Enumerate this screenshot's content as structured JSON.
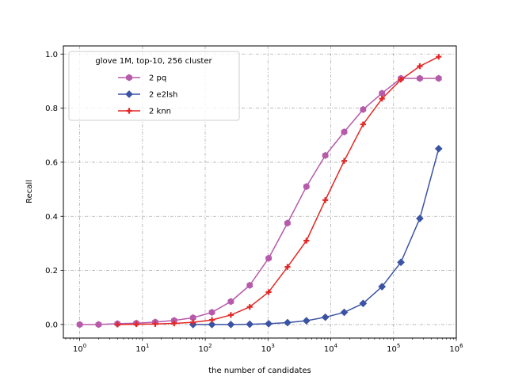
{
  "chart_data": {
    "type": "line",
    "x_scale": "log",
    "xlim": [
      0.55,
      1000000
    ],
    "ylim": [
      -0.05,
      1.03
    ],
    "grid": true,
    "legend_position": "top-left",
    "legend_title": "glove 1M, top-10, 256 cluster",
    "xlabel": "the number of candidates",
    "ylabel": "Recall",
    "x_ticks": [
      {
        "value": 1,
        "base": "10",
        "exp": "0"
      },
      {
        "value": 10,
        "base": "10",
        "exp": "1"
      },
      {
        "value": 100,
        "base": "10",
        "exp": "2"
      },
      {
        "value": 1000,
        "base": "10",
        "exp": "3"
      },
      {
        "value": 10000,
        "base": "10",
        "exp": "4"
      },
      {
        "value": 100000,
        "base": "10",
        "exp": "5"
      },
      {
        "value": 1000000,
        "base": "10",
        "exp": "6"
      }
    ],
    "y_ticks": [
      {
        "value": 0.0,
        "label": "0.0"
      },
      {
        "value": 0.2,
        "label": "0.2"
      },
      {
        "value": 0.4,
        "label": "0.4"
      },
      {
        "value": 0.6,
        "label": "0.6"
      },
      {
        "value": 0.8,
        "label": "0.8"
      },
      {
        "value": 1.0,
        "label": "1.0"
      }
    ],
    "series": [
      {
        "name": "2 pq",
        "color": "#b65aaa",
        "marker": "hexagon",
        "x": [
          1,
          2,
          4,
          8,
          16,
          32,
          64,
          128,
          256,
          512,
          1024,
          2048,
          4096,
          8192,
          16384,
          32768,
          65536,
          131072,
          262144,
          524288
        ],
        "y": [
          0.0,
          0.0,
          0.003,
          0.005,
          0.009,
          0.015,
          0.025,
          0.045,
          0.085,
          0.145,
          0.245,
          0.375,
          0.51,
          0.625,
          0.712,
          0.795,
          0.855,
          0.91,
          0.91,
          0.91
        ]
      },
      {
        "name": "2 e2lsh",
        "color": "#3b53a3",
        "marker": "diamond",
        "x": [
          64,
          128,
          256,
          512,
          1024,
          2048,
          4096,
          8192,
          16384,
          32768,
          65536,
          131072,
          262144,
          524288
        ],
        "y": [
          0.0,
          0.0,
          0.0,
          0.001,
          0.003,
          0.007,
          0.014,
          0.027,
          0.045,
          0.078,
          0.14,
          0.23,
          0.392,
          0.65
        ]
      },
      {
        "name": "2 knn",
        "color": "#e32726",
        "marker": "plus",
        "x": [
          4,
          8,
          16,
          32,
          64,
          128,
          256,
          512,
          1024,
          2048,
          4096,
          8192,
          16384,
          32768,
          65536,
          131072,
          262144,
          524288
        ],
        "y": [
          0.0,
          0.001,
          0.002,
          0.004,
          0.008,
          0.017,
          0.035,
          0.065,
          0.12,
          0.213,
          0.31,
          0.46,
          0.605,
          0.74,
          0.835,
          0.905,
          0.955,
          0.99
        ]
      }
    ]
  }
}
